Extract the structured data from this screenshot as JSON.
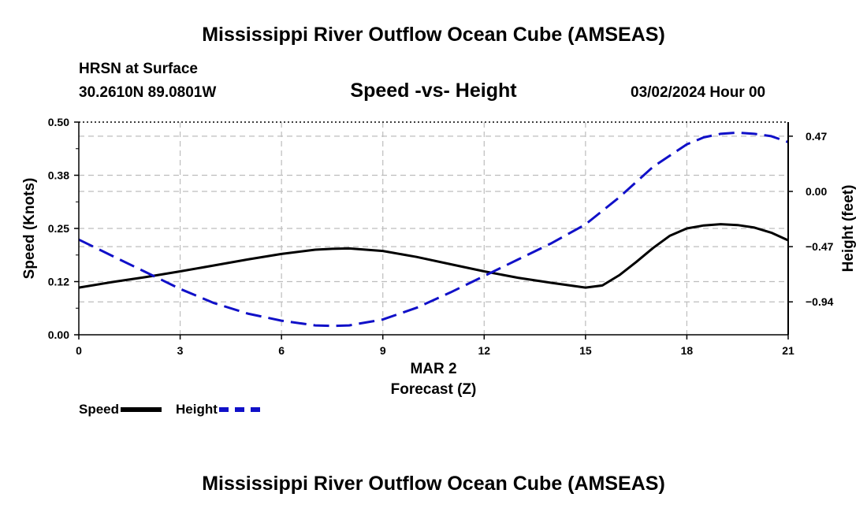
{
  "header": {
    "title": "Mississippi River Outflow Ocean Cube (AMSEAS)",
    "station": "HRSN at Surface",
    "coords": "30.2610N  89.0801W",
    "datetime": "03/02/2024 Hour 00"
  },
  "footer": {
    "title": "Mississippi River Outflow Ocean Cube (AMSEAS)"
  },
  "legend": {
    "speed": "Speed",
    "height": "Height"
  },
  "colors": {
    "speed": "#000000",
    "height": "#1010c8",
    "grid": "#bdbdbd"
  },
  "chart_data": {
    "type": "line",
    "title": "Speed -vs- Height",
    "xlabel": "Forecast (Z)",
    "date_label": "MAR 2",
    "ylabel_left": "Speed (Knots)",
    "ylabel_right": "Height (feet)",
    "xlim": [
      0,
      21
    ],
    "x_ticks": [
      0,
      3,
      6,
      9,
      12,
      15,
      18,
      21
    ],
    "x_tick_labels": [
      "0",
      "3",
      "6",
      "9",
      "12",
      "15",
      "18",
      "21"
    ],
    "ylim_left": [
      0,
      0.5
    ],
    "y_left_ticks": [
      0,
      0.125,
      0.25,
      0.375,
      0.5
    ],
    "y_left_tick_labels": [
      "0.00",
      "0.12",
      "0.25",
      "0.38",
      "0.50"
    ],
    "ylim_right": [
      -1.22,
      0.59
    ],
    "y_right_ticks": [
      -0.94,
      -0.47,
      0,
      0.47
    ],
    "y_right_tick_labels": [
      "−0.94",
      "−0.47",
      "0.00",
      "0.47"
    ],
    "grid": true,
    "series": [
      {
        "name": "Speed",
        "axis": "left",
        "style": "solid",
        "x": [
          0,
          1,
          2,
          3,
          4,
          5,
          6,
          7,
          7.5,
          8,
          9,
          10,
          11,
          12,
          13,
          14,
          15,
          15.5,
          16,
          16.5,
          17,
          17.5,
          18,
          18.5,
          19,
          19.5,
          20,
          20.5,
          21
        ],
        "values": [
          0.111,
          0.124,
          0.136,
          0.149,
          0.163,
          0.177,
          0.19,
          0.2,
          0.202,
          0.203,
          0.197,
          0.183,
          0.166,
          0.149,
          0.134,
          0.122,
          0.111,
          0.116,
          0.14,
          0.171,
          0.204,
          0.233,
          0.25,
          0.257,
          0.26,
          0.258,
          0.252,
          0.24,
          0.222
        ]
      },
      {
        "name": "Height",
        "axis": "right",
        "style": "dashed",
        "x": [
          0,
          1,
          2,
          3,
          4,
          5,
          6,
          7,
          7.5,
          8,
          9,
          10,
          11,
          12,
          13,
          14,
          15,
          16,
          17,
          18,
          18.5,
          19,
          19.5,
          20,
          20.5,
          21
        ],
        "values": [
          -0.41,
          -0.55,
          -0.69,
          -0.83,
          -0.95,
          -1.04,
          -1.1,
          -1.14,
          -1.145,
          -1.14,
          -1.09,
          -0.99,
          -0.86,
          -0.72,
          -0.58,
          -0.44,
          -0.28,
          -0.05,
          0.21,
          0.4,
          0.46,
          0.49,
          0.5,
          0.49,
          0.47,
          0.42
        ]
      }
    ]
  }
}
